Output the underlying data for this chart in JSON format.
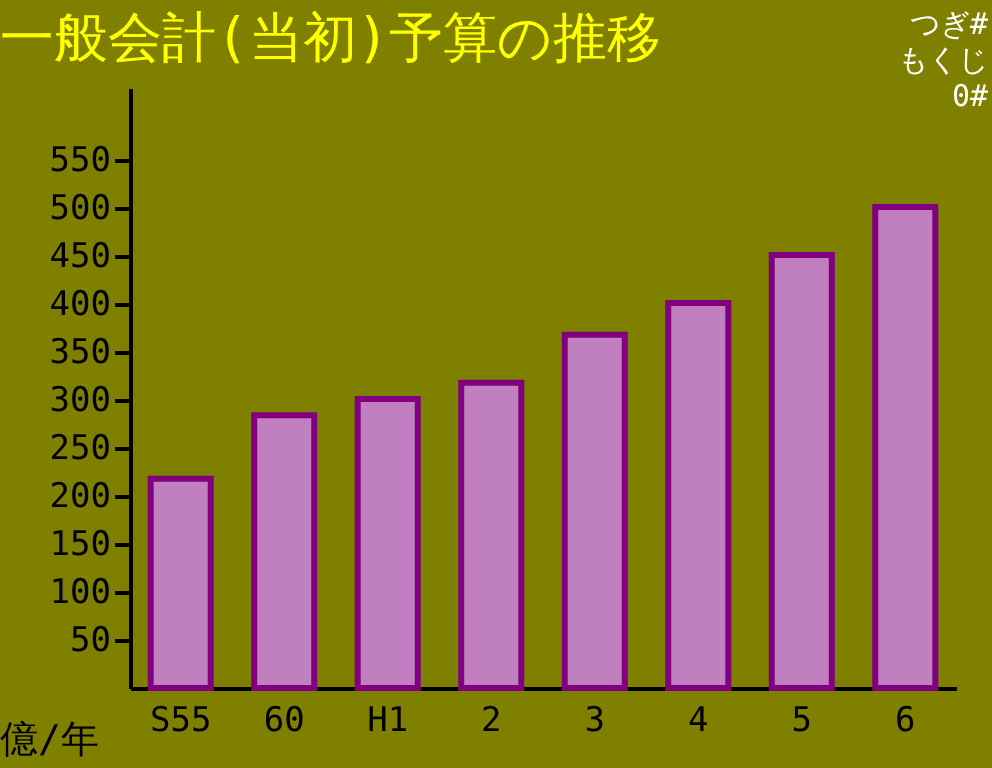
{
  "chart_data": {
    "type": "bar",
    "title": "一般会計(当初)予算の推移",
    "ylabel": "億/年",
    "categories": [
      "S55",
      "60",
      "H1",
      "2",
      "3",
      "4",
      "5",
      "6"
    ],
    "values": [
      218,
      284,
      301,
      318,
      368,
      401,
      451,
      501
    ],
    "color": "#c080c0",
    "ylim": [
      0,
      625
    ],
    "yticks": [
      50,
      100,
      150,
      200,
      250,
      300,
      350,
      400,
      450,
      500,
      550
    ],
    "grid": false,
    "annotations": [
      "つぎ#",
      "もくじ",
      "0#"
    ]
  }
}
